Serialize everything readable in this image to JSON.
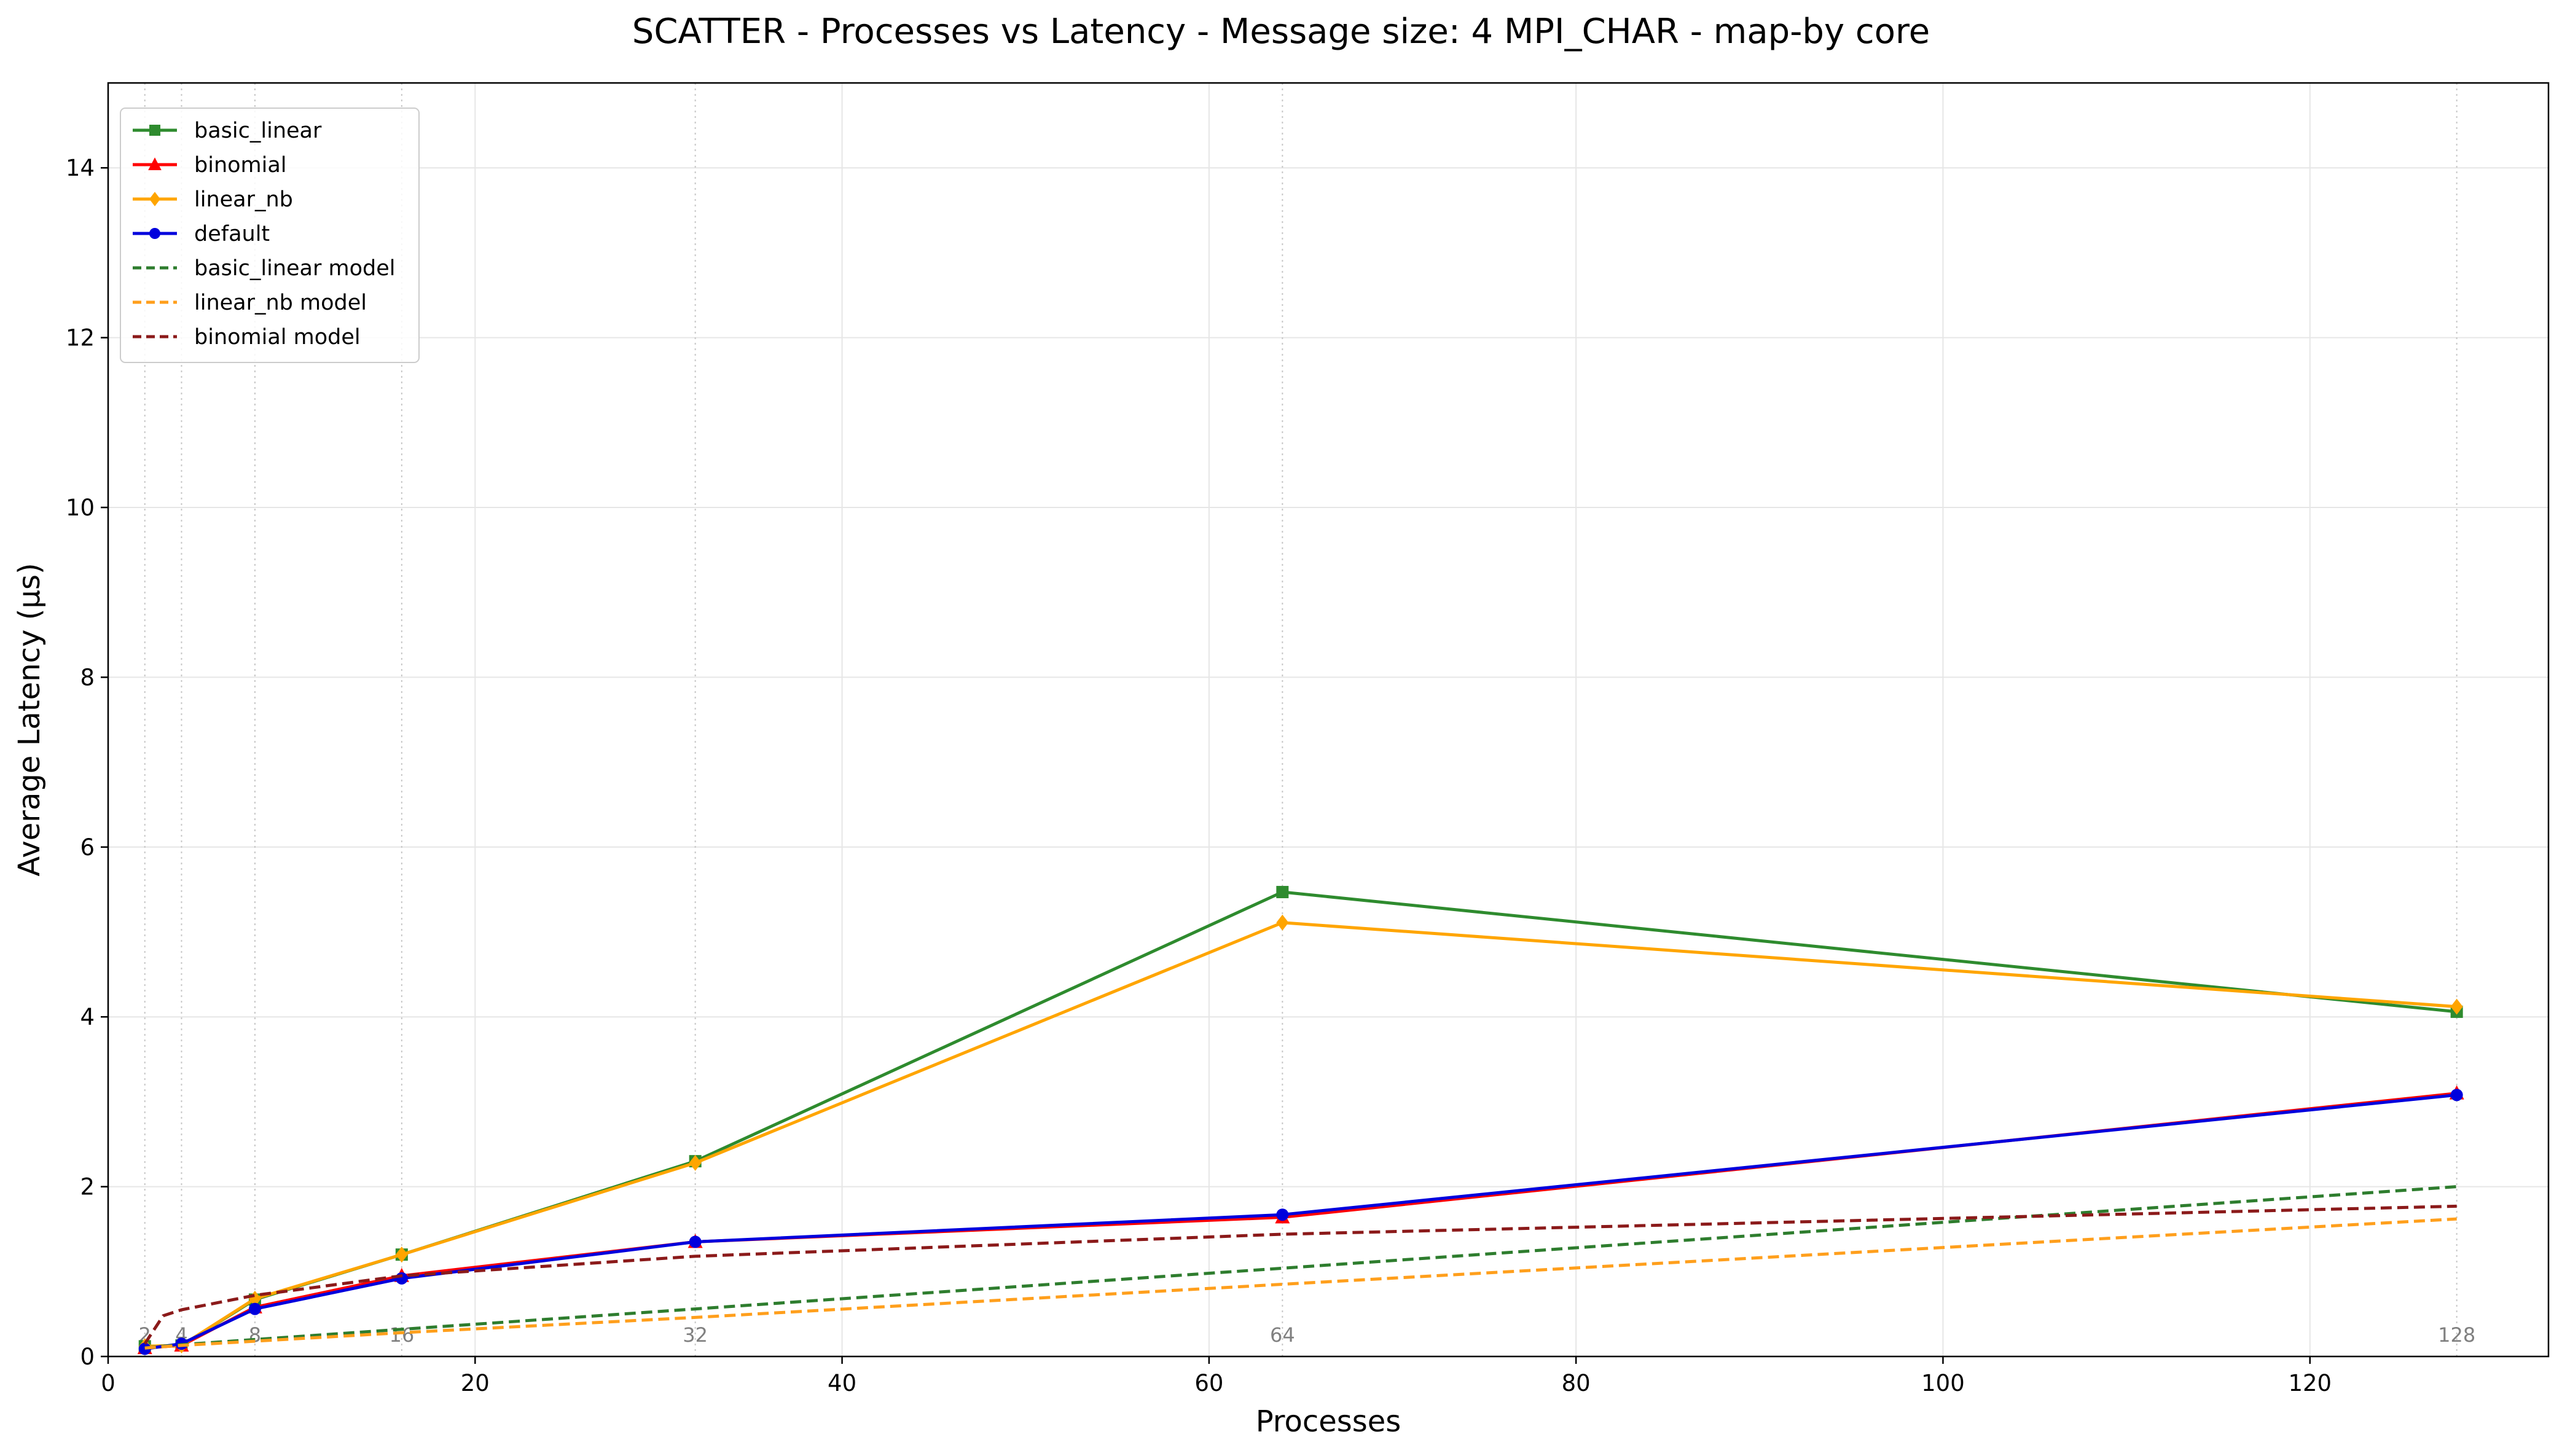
{
  "chart_data": {
    "type": "line",
    "title": "SCATTER - Processes vs Latency - Message size: 4 MPI_CHAR - map-by core",
    "xlabel": "Processes",
    "ylabel": "Average Latency (µs)",
    "xlim": [
      0,
      133
    ],
    "ylim": [
      0,
      15
    ],
    "xticks": [
      0,
      20,
      40,
      60,
      80,
      100,
      120
    ],
    "yticks": [
      0,
      2,
      4,
      6,
      8,
      10,
      12,
      14
    ],
    "grid": true,
    "legend_position": "top-left",
    "x_markers": [
      2,
      4,
      8,
      16,
      32,
      64,
      128
    ],
    "x_marker_labels": [
      "2",
      "4",
      "8",
      "16",
      "32",
      "64",
      "128"
    ],
    "series": [
      {
        "name": "basic_linear",
        "color": "#2e8b2e",
        "style": "solid",
        "marker": "square",
        "x": [
          2,
          4,
          8,
          16,
          32,
          64,
          128
        ],
        "y": [
          0.12,
          0.13,
          0.67,
          1.2,
          2.3,
          5.47,
          4.06
        ]
      },
      {
        "name": "binomial",
        "color": "#ff0000",
        "style": "solid",
        "marker": "triangle",
        "x": [
          2,
          4,
          8,
          16,
          32,
          64,
          128
        ],
        "y": [
          0.1,
          0.13,
          0.58,
          0.95,
          1.35,
          1.64,
          3.1
        ]
      },
      {
        "name": "linear_nb",
        "color": "#ffa500",
        "style": "solid",
        "marker": "diamond",
        "x": [
          2,
          4,
          8,
          16,
          32,
          64,
          128
        ],
        "y": [
          0.12,
          0.13,
          0.68,
          1.2,
          2.28,
          5.11,
          4.12
        ]
      },
      {
        "name": "default",
        "color": "#0000dd",
        "style": "solid",
        "marker": "circle",
        "x": [
          2,
          4,
          8,
          16,
          32,
          64,
          128
        ],
        "y": [
          0.09,
          0.15,
          0.56,
          0.92,
          1.35,
          1.67,
          3.08
        ]
      },
      {
        "name": "basic_linear model",
        "color": "#2e7d2e",
        "style": "dashed",
        "marker": "none",
        "x": [
          2,
          4,
          8,
          16,
          32,
          64,
          128
        ],
        "y": [
          0.1,
          0.14,
          0.2,
          0.32,
          0.56,
          1.04,
          2.0
        ]
      },
      {
        "name": "linear_nb model",
        "color": "#ff9f1c",
        "style": "dashed",
        "marker": "none",
        "x": [
          2,
          4,
          8,
          16,
          32,
          64,
          128
        ],
        "y": [
          0.1,
          0.13,
          0.18,
          0.28,
          0.46,
          0.85,
          1.62
        ]
      },
      {
        "name": "binomial model",
        "color": "#8b1a1a",
        "style": "dashed",
        "marker": "none",
        "x": [
          2,
          3,
          4,
          8,
          16,
          32,
          64,
          128
        ],
        "y": [
          0.15,
          0.48,
          0.55,
          0.72,
          0.95,
          1.18,
          1.44,
          1.77
        ]
      }
    ]
  }
}
